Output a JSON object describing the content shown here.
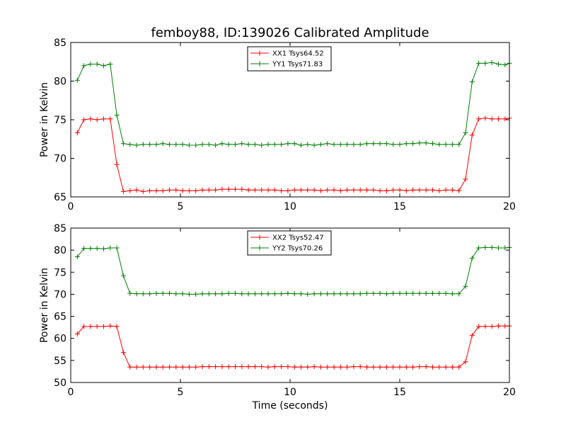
{
  "chart_data": [
    {
      "type": "line",
      "title": "femboy88, ID:139026 Calibrated Amplitude",
      "xlabel": "",
      "ylabel": "Power in Kelvin",
      "xlim": [
        0,
        20
      ],
      "ylim": [
        65,
        85
      ],
      "xticks": [
        "0",
        "5",
        "10",
        "15",
        "20"
      ],
      "yticks": [
        "65",
        "70",
        "75",
        "80",
        "85"
      ],
      "grid": false,
      "legend_position": "top-center",
      "series": [
        {
          "name": "XX1 Tsys64.52",
          "color": "#ff0000",
          "x": [
            0.3,
            0.6,
            0.9,
            1.2,
            1.5,
            1.8,
            2.1,
            2.4,
            2.7,
            3.0,
            3.3,
            3.6,
            3.9,
            4.2,
            4.5,
            4.8,
            5.1,
            5.4,
            5.7,
            6.0,
            6.3,
            6.6,
            6.9,
            7.2,
            7.5,
            7.8,
            8.1,
            8.4,
            8.7,
            9.0,
            9.3,
            9.6,
            9.9,
            10.2,
            10.5,
            10.8,
            11.1,
            11.4,
            11.7,
            12.0,
            12.3,
            12.6,
            12.9,
            13.2,
            13.5,
            13.8,
            14.1,
            14.4,
            14.7,
            15.0,
            15.3,
            15.6,
            15.9,
            16.2,
            16.5,
            16.8,
            17.1,
            17.4,
            17.7,
            18.0,
            18.3,
            18.6,
            18.9,
            19.2,
            19.5,
            19.8,
            20.0
          ],
          "y": [
            73.3,
            75.0,
            75.1,
            75.0,
            75.1,
            75.1,
            69.2,
            65.7,
            65.8,
            65.9,
            65.7,
            65.8,
            65.8,
            65.8,
            65.9,
            65.9,
            65.8,
            65.8,
            65.8,
            65.9,
            65.9,
            65.9,
            66.0,
            66.0,
            66.0,
            66.0,
            65.9,
            65.9,
            65.9,
            65.9,
            65.9,
            65.8,
            65.8,
            65.9,
            65.9,
            65.9,
            65.9,
            65.8,
            65.9,
            65.9,
            65.8,
            65.9,
            65.9,
            65.9,
            65.9,
            65.9,
            65.8,
            65.8,
            65.9,
            65.9,
            65.8,
            65.9,
            65.9,
            65.9,
            65.9,
            65.8,
            65.9,
            65.9,
            65.8,
            67.3,
            73.0,
            75.1,
            75.2,
            75.1,
            75.1,
            75.1,
            75.2
          ]
        },
        {
          "name": "YY1 Tsys71.83",
          "color": "#008000",
          "x": [
            0.3,
            0.6,
            0.9,
            1.2,
            1.5,
            1.8,
            2.1,
            2.4,
            2.7,
            3.0,
            3.3,
            3.6,
            3.9,
            4.2,
            4.5,
            4.8,
            5.1,
            5.4,
            5.7,
            6.0,
            6.3,
            6.6,
            6.9,
            7.2,
            7.5,
            7.8,
            8.1,
            8.4,
            8.7,
            9.0,
            9.3,
            9.6,
            9.9,
            10.2,
            10.5,
            10.8,
            11.1,
            11.4,
            11.7,
            12.0,
            12.3,
            12.6,
            12.9,
            13.2,
            13.5,
            13.8,
            14.1,
            14.4,
            14.7,
            15.0,
            15.3,
            15.6,
            15.9,
            16.2,
            16.5,
            16.8,
            17.1,
            17.4,
            17.7,
            18.0,
            18.3,
            18.6,
            18.9,
            19.2,
            19.5,
            19.8,
            20.0
          ],
          "y": [
            80.1,
            82.0,
            82.2,
            82.2,
            82.0,
            82.2,
            75.6,
            71.9,
            71.8,
            71.7,
            71.8,
            71.8,
            71.8,
            71.9,
            71.8,
            71.8,
            71.8,
            71.7,
            71.7,
            71.8,
            71.8,
            71.7,
            71.9,
            71.8,
            71.8,
            71.9,
            71.8,
            71.8,
            71.7,
            71.8,
            71.8,
            71.8,
            71.9,
            71.9,
            71.7,
            71.8,
            71.7,
            71.8,
            71.9,
            71.8,
            71.8,
            71.8,
            71.8,
            71.8,
            71.9,
            71.9,
            71.9,
            71.9,
            71.8,
            71.8,
            71.9,
            71.9,
            72.0,
            72.0,
            71.9,
            71.8,
            71.8,
            71.8,
            71.8,
            73.3,
            79.9,
            82.3,
            82.3,
            82.4,
            82.2,
            82.1,
            82.3
          ]
        }
      ]
    },
    {
      "type": "line",
      "title": "",
      "xlabel": "Time (seconds)",
      "ylabel": "Power in Kelvin",
      "xlim": [
        0,
        20
      ],
      "ylim": [
        50,
        85
      ],
      "xticks": [
        "0",
        "5",
        "10",
        "15",
        "20"
      ],
      "yticks": [
        "50",
        "55",
        "60",
        "65",
        "70",
        "75",
        "80",
        "85"
      ],
      "grid": false,
      "legend_position": "top-center",
      "series": [
        {
          "name": "XX2 Tsys52.47",
          "color": "#ff0000",
          "x": [
            0.3,
            0.6,
            0.9,
            1.2,
            1.5,
            1.8,
            2.1,
            2.4,
            2.7,
            3.0,
            3.3,
            3.6,
            3.9,
            4.2,
            4.5,
            4.8,
            5.1,
            5.4,
            5.7,
            6.0,
            6.3,
            6.6,
            6.9,
            7.2,
            7.5,
            7.8,
            8.1,
            8.4,
            8.7,
            9.0,
            9.3,
            9.6,
            9.9,
            10.2,
            10.5,
            10.8,
            11.1,
            11.4,
            11.7,
            12.0,
            12.3,
            12.6,
            12.9,
            13.2,
            13.5,
            13.8,
            14.1,
            14.4,
            14.7,
            15.0,
            15.3,
            15.6,
            15.9,
            16.2,
            16.5,
            16.8,
            17.1,
            17.4,
            17.7,
            18.0,
            18.3,
            18.6,
            18.9,
            19.2,
            19.5,
            19.8,
            20.0
          ],
          "y": [
            61.0,
            62.7,
            62.7,
            62.7,
            62.7,
            62.8,
            62.7,
            56.8,
            53.5,
            53.5,
            53.5,
            53.5,
            53.5,
            53.5,
            53.5,
            53.5,
            53.5,
            53.5,
            53.5,
            53.6,
            53.6,
            53.6,
            53.6,
            53.6,
            53.6,
            53.6,
            53.6,
            53.6,
            53.6,
            53.5,
            53.6,
            53.6,
            53.6,
            53.5,
            53.5,
            53.5,
            53.6,
            53.5,
            53.5,
            53.5,
            53.5,
            53.5,
            53.6,
            53.6,
            53.5,
            53.5,
            53.5,
            53.5,
            53.5,
            53.5,
            53.5,
            53.5,
            53.6,
            53.6,
            53.5,
            53.5,
            53.5,
            53.5,
            53.5,
            54.7,
            60.7,
            62.7,
            62.7,
            62.7,
            62.8,
            62.8,
            62.8
          ]
        },
        {
          "name": "YY2 Tsys70.26",
          "color": "#008000",
          "x": [
            0.3,
            0.6,
            0.9,
            1.2,
            1.5,
            1.8,
            2.1,
            2.4,
            2.7,
            3.0,
            3.3,
            3.6,
            3.9,
            4.2,
            4.5,
            4.8,
            5.1,
            5.4,
            5.7,
            6.0,
            6.3,
            6.6,
            6.9,
            7.2,
            7.5,
            7.8,
            8.1,
            8.4,
            8.7,
            9.0,
            9.3,
            9.6,
            9.9,
            10.2,
            10.5,
            10.8,
            11.1,
            11.4,
            11.7,
            12.0,
            12.3,
            12.6,
            12.9,
            13.2,
            13.5,
            13.8,
            14.1,
            14.4,
            14.7,
            15.0,
            15.3,
            15.6,
            15.9,
            16.2,
            16.5,
            16.8,
            17.1,
            17.4,
            17.7,
            18.0,
            18.3,
            18.6,
            18.9,
            19.2,
            19.5,
            19.8,
            20.0
          ],
          "y": [
            78.5,
            80.4,
            80.4,
            80.4,
            80.3,
            80.5,
            80.5,
            74.2,
            70.2,
            70.1,
            70.1,
            70.1,
            70.2,
            70.2,
            70.2,
            70.1,
            70.1,
            70.0,
            70.0,
            70.1,
            70.1,
            70.1,
            70.1,
            70.2,
            70.2,
            70.1,
            70.1,
            70.1,
            70.1,
            70.1,
            70.1,
            70.1,
            70.2,
            70.1,
            70.1,
            70.0,
            70.1,
            70.1,
            70.1,
            70.1,
            70.1,
            70.1,
            70.1,
            70.1,
            70.2,
            70.2,
            70.2,
            70.1,
            70.2,
            70.2,
            70.2,
            70.2,
            70.2,
            70.2,
            70.2,
            70.2,
            70.2,
            70.1,
            70.1,
            71.8,
            78.2,
            80.5,
            80.6,
            80.6,
            80.5,
            80.5,
            80.6
          ]
        }
      ]
    }
  ]
}
